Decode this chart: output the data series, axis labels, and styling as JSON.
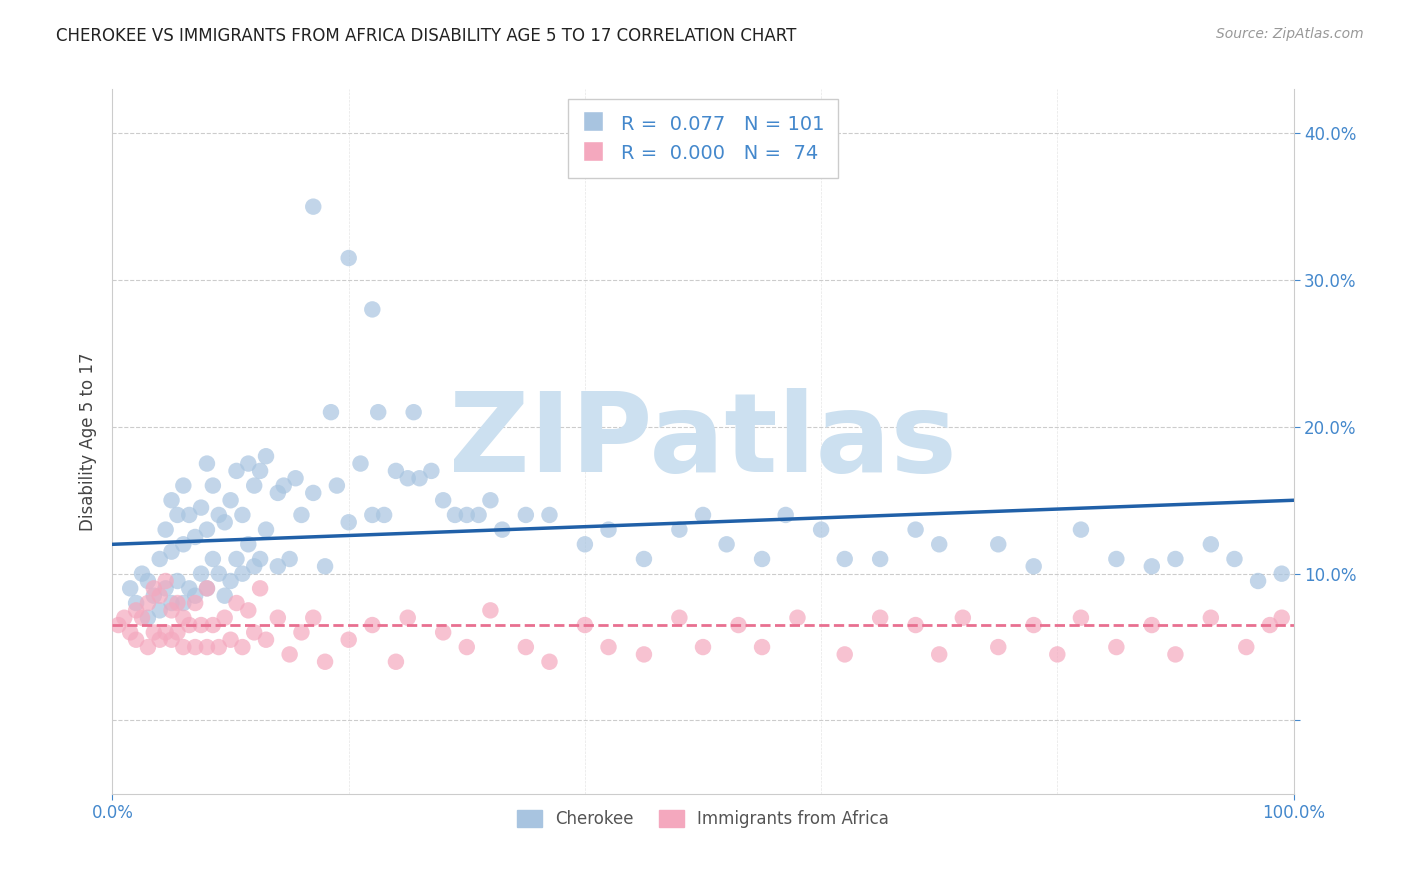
{
  "title": "CHEROKEE VS IMMIGRANTS FROM AFRICA DISABILITY AGE 5 TO 17 CORRELATION CHART",
  "source": "Source: ZipAtlas.com",
  "ylabel": "Disability Age 5 to 17",
  "xlim": [
    0,
    100
  ],
  "ylim": [
    -5,
    43
  ],
  "yticks": [
    0,
    10,
    20,
    30,
    40
  ],
  "ytick_labels": [
    "",
    "10.0%",
    "20.0%",
    "30.0%",
    "40.0%"
  ],
  "xtick_labels": [
    "0.0%",
    "100.0%"
  ],
  "legend_label1": "Cherokee",
  "legend_label2": "Immigrants from Africa",
  "R1": "0.077",
  "N1": "101",
  "R2": "0.000",
  "N2": "74",
  "color_blue": "#a8c4e0",
  "color_pink": "#f4a8be",
  "line_blue": "#2060a8",
  "line_pink": "#e87090",
  "watermark_text": "ZIPatlas",
  "watermark_color": "#cce0f0",
  "blue_trend_y0": 12.0,
  "blue_trend_y1": 15.0,
  "pink_trend_y0": 6.5,
  "pink_trend_y1": 6.5,
  "grid_color": "#cccccc",
  "title_color": "#222222",
  "tick_color": "#4488cc",
  "ylabel_color": "#444444",
  "source_color": "#999999",
  "blue_x": [
    1.5,
    2.0,
    2.5,
    3.0,
    3.0,
    3.5,
    4.0,
    4.0,
    4.5,
    4.5,
    5.0,
    5.0,
    5.0,
    5.5,
    5.5,
    6.0,
    6.0,
    6.0,
    6.5,
    6.5,
    7.0,
    7.0,
    7.5,
    7.5,
    8.0,
    8.0,
    8.0,
    8.5,
    8.5,
    9.0,
    9.0,
    9.5,
    9.5,
    10.0,
    10.0,
    10.5,
    10.5,
    11.0,
    11.0,
    11.5,
    11.5,
    12.0,
    12.0,
    12.5,
    12.5,
    13.0,
    13.0,
    14.0,
    14.0,
    14.5,
    15.0,
    15.5,
    16.0,
    17.0,
    18.0,
    18.5,
    19.0,
    20.0,
    21.0,
    22.0,
    22.5,
    23.0,
    24.0,
    25.0,
    25.5,
    26.0,
    27.0,
    28.0,
    29.0,
    30.0,
    31.0,
    32.0,
    33.0,
    35.0,
    37.0,
    40.0,
    42.0,
    45.0,
    48.0,
    50.0,
    52.0,
    55.0,
    57.0,
    60.0,
    62.0,
    65.0,
    68.0,
    70.0,
    75.0,
    78.0,
    82.0,
    85.0,
    88.0,
    90.0,
    93.0,
    95.0,
    97.0,
    99.0,
    17.0,
    20.0,
    22.0
  ],
  "blue_y": [
    9.0,
    8.0,
    10.0,
    7.0,
    9.5,
    8.5,
    7.5,
    11.0,
    9.0,
    13.0,
    8.0,
    11.5,
    15.0,
    9.5,
    14.0,
    8.0,
    12.0,
    16.0,
    9.0,
    14.0,
    8.5,
    12.5,
    10.0,
    14.5,
    9.0,
    13.0,
    17.5,
    11.0,
    16.0,
    10.0,
    14.0,
    8.5,
    13.5,
    9.5,
    15.0,
    11.0,
    17.0,
    10.0,
    14.0,
    12.0,
    17.5,
    10.5,
    16.0,
    11.0,
    17.0,
    13.0,
    18.0,
    10.5,
    15.5,
    16.0,
    11.0,
    16.5,
    14.0,
    15.5,
    10.5,
    21.0,
    16.0,
    13.5,
    17.5,
    14.0,
    21.0,
    14.0,
    17.0,
    16.5,
    21.0,
    16.5,
    17.0,
    15.0,
    14.0,
    14.0,
    14.0,
    15.0,
    13.0,
    14.0,
    14.0,
    12.0,
    13.0,
    11.0,
    13.0,
    14.0,
    12.0,
    11.0,
    14.0,
    13.0,
    11.0,
    11.0,
    13.0,
    12.0,
    12.0,
    10.5,
    13.0,
    11.0,
    10.5,
    11.0,
    12.0,
    11.0,
    9.5,
    10.0,
    35.0,
    31.5,
    28.0
  ],
  "pink_x": [
    0.5,
    1.0,
    1.5,
    2.0,
    2.0,
    2.5,
    3.0,
    3.0,
    3.5,
    3.5,
    4.0,
    4.0,
    4.5,
    4.5,
    5.0,
    5.0,
    5.5,
    5.5,
    6.0,
    6.0,
    6.5,
    7.0,
    7.0,
    7.5,
    8.0,
    8.0,
    8.5,
    9.0,
    9.5,
    10.0,
    10.5,
    11.0,
    11.5,
    12.0,
    12.5,
    13.0,
    14.0,
    15.0,
    16.0,
    17.0,
    18.0,
    20.0,
    22.0,
    24.0,
    25.0,
    28.0,
    30.0,
    32.0,
    35.0,
    37.0,
    40.0,
    42.0,
    45.0,
    48.0,
    50.0,
    53.0,
    55.0,
    58.0,
    62.0,
    65.0,
    68.0,
    70.0,
    72.0,
    75.0,
    78.0,
    80.0,
    82.0,
    85.0,
    88.0,
    90.0,
    93.0,
    96.0,
    98.0,
    99.0
  ],
  "pink_y": [
    6.5,
    7.0,
    6.0,
    7.5,
    5.5,
    7.0,
    5.0,
    8.0,
    6.0,
    9.0,
    5.5,
    8.5,
    6.0,
    9.5,
    5.5,
    7.5,
    6.0,
    8.0,
    5.0,
    7.0,
    6.5,
    5.0,
    8.0,
    6.5,
    5.0,
    9.0,
    6.5,
    5.0,
    7.0,
    5.5,
    8.0,
    5.0,
    7.5,
    6.0,
    9.0,
    5.5,
    7.0,
    4.5,
    6.0,
    7.0,
    4.0,
    5.5,
    6.5,
    4.0,
    7.0,
    6.0,
    5.0,
    7.5,
    5.0,
    4.0,
    6.5,
    5.0,
    4.5,
    7.0,
    5.0,
    6.5,
    5.0,
    7.0,
    4.5,
    7.0,
    6.5,
    4.5,
    7.0,
    5.0,
    6.5,
    4.5,
    7.0,
    5.0,
    6.5,
    4.5,
    7.0,
    5.0,
    6.5,
    7.0
  ]
}
